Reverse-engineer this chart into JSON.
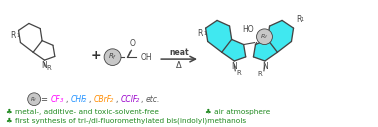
{
  "bg_color": "#ffffff",
  "reaction_arrow_text_top": "neat",
  "reaction_arrow_text_bottom": "Δ",
  "bullet": "♣",
  "line1": " metal-, additive- and toxic-solvent-free",
  "line1b": " air atmosphere",
  "line2": " first synthesis of tri-/di-fluoromethylated bis(indolyl)methanols",
  "color_green": "#228B22",
  "color_cf3": "#FF00FF",
  "color_chf2": "#1E90FF",
  "color_cbrf2": "#FF8C00",
  "color_cclf2": "#9900CC",
  "color_etc": "#555555",
  "color_arrow": "#444444",
  "color_cyan_fill": "#40E8F0",
  "color_cyan_fill2": "#80F0F8",
  "color_struct": "#444444",
  "color_rf_circle": "#C8C8C8",
  "plus_color": "#333333"
}
